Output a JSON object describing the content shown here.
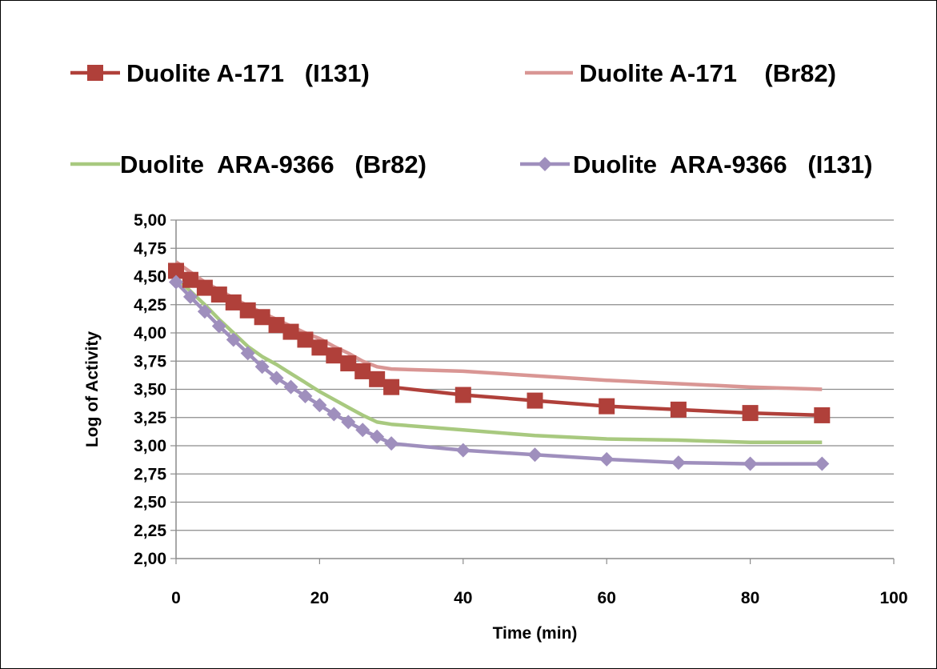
{
  "chart_data": {
    "type": "line",
    "title": "",
    "xlabel": "Time (min)",
    "ylabel": "Log of Activity",
    "xlim": [
      0,
      100
    ],
    "ylim": [
      2.0,
      5.0
    ],
    "x_ticks": [
      "0",
      "20",
      "40",
      "60",
      "80",
      "100"
    ],
    "y_ticks": [
      "2,00",
      "2,25",
      "2,50",
      "2,75",
      "3,00",
      "3,25",
      "3,50",
      "3,75",
      "4,00",
      "4,25",
      "4,50",
      "4,75",
      "5,00"
    ],
    "grid": "horizontal",
    "legend_position": "top",
    "series": [
      {
        "name": "Duolite A-171   (I131)",
        "color": "#b0403a",
        "marker": "square",
        "x": [
          0,
          2,
          4,
          6,
          8,
          10,
          12,
          14,
          16,
          18,
          20,
          22,
          24,
          26,
          28,
          30,
          40,
          50,
          60,
          70,
          80,
          90
        ],
        "y": [
          4.55,
          4.47,
          4.4,
          4.34,
          4.27,
          4.2,
          4.14,
          4.07,
          4.01,
          3.94,
          3.87,
          3.8,
          3.73,
          3.66,
          3.59,
          3.52,
          3.45,
          3.4,
          3.35,
          3.32,
          3.29,
          3.27
        ]
      },
      {
        "name": "Duolite A-171    (Br82)",
        "color": "#d99694",
        "marker": "none",
        "x": [
          0,
          2,
          4,
          6,
          8,
          10,
          12,
          14,
          16,
          18,
          20,
          22,
          24,
          26,
          28,
          30,
          40,
          50,
          60,
          70,
          80,
          90
        ],
        "y": [
          4.63,
          4.54,
          4.45,
          4.38,
          4.31,
          4.24,
          4.18,
          4.12,
          4.06,
          4.0,
          3.95,
          3.88,
          3.82,
          3.75,
          3.7,
          3.68,
          3.66,
          3.62,
          3.58,
          3.55,
          3.52,
          3.5
        ]
      },
      {
        "name": "Duolite  ARA-9366   (Br82)",
        "color": "#a8c97f",
        "marker": "none",
        "x": [
          0,
          2,
          4,
          6,
          8,
          10,
          12,
          14,
          16,
          18,
          20,
          22,
          24,
          26,
          28,
          30,
          40,
          50,
          60,
          70,
          80,
          90
        ],
        "y": [
          4.49,
          4.37,
          4.25,
          4.12,
          4.0,
          3.88,
          3.79,
          3.72,
          3.64,
          3.56,
          3.48,
          3.41,
          3.34,
          3.27,
          3.21,
          3.19,
          3.14,
          3.09,
          3.06,
          3.05,
          3.03,
          3.03
        ]
      },
      {
        "name": "Duolite  ARA-9366   (I131)",
        "color": "#9f8fbd",
        "marker": "diamond",
        "x": [
          0,
          2,
          4,
          6,
          8,
          10,
          12,
          14,
          16,
          18,
          20,
          22,
          24,
          26,
          28,
          30,
          40,
          50,
          60,
          70,
          80,
          90
        ],
        "y": [
          4.45,
          4.32,
          4.19,
          4.06,
          3.94,
          3.82,
          3.7,
          3.6,
          3.52,
          3.44,
          3.36,
          3.28,
          3.21,
          3.14,
          3.08,
          3.02,
          2.96,
          2.92,
          2.88,
          2.85,
          2.84,
          2.84
        ]
      }
    ]
  }
}
